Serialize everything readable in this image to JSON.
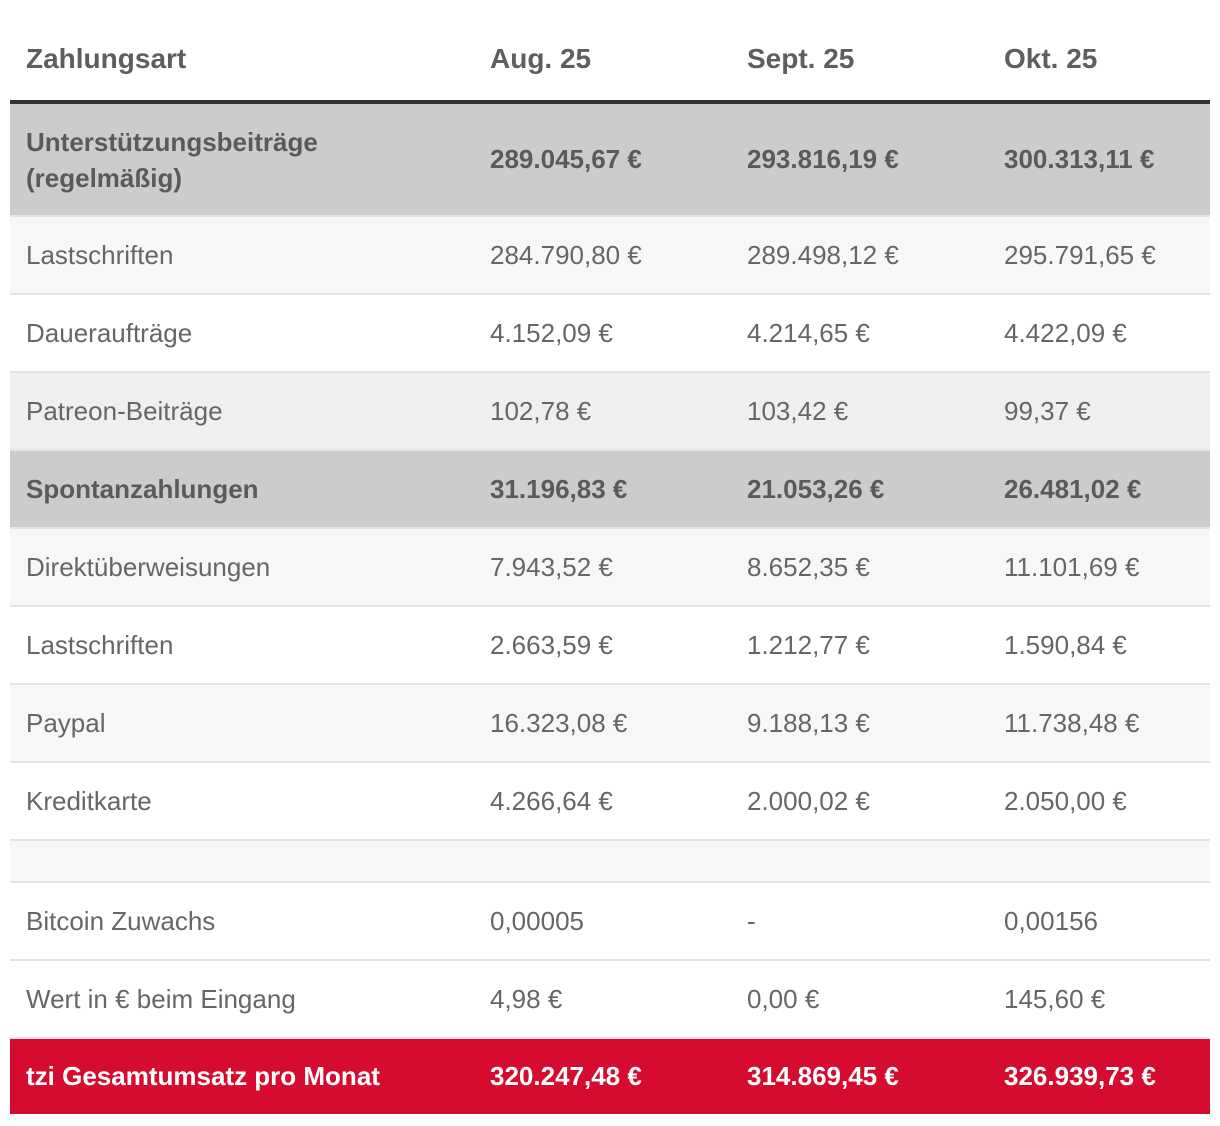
{
  "header": {
    "col1": "Zahlungsart",
    "col2": "Aug. 25",
    "col3": "Sept. 25",
    "col4": "Okt. 25"
  },
  "rows": [
    {
      "label": "Unterstützungsbeiträge (regelmäßig)",
      "v1": "289.045,67 €",
      "v2": "293.816,19 €",
      "v3": "300.313,11 €"
    },
    {
      "label": "Lastschriften",
      "v1": "284.790,80 €",
      "v2": "289.498,12 €",
      "v3": "295.791,65 €"
    },
    {
      "label": "Daueraufträge",
      "v1": "4.152,09 €",
      "v2": "4.214,65 €",
      "v3": "4.422,09 €"
    },
    {
      "label": "Patreon-Beiträge",
      "v1": "102,78 €",
      "v2": "103,42 €",
      "v3": "99,37 €"
    },
    {
      "label": "Spontanzahlungen",
      "v1": "31.196,83 €",
      "v2": "21.053,26 €",
      "v3": "26.481,02 €"
    },
    {
      "label": "Direktüberweisungen",
      "v1": "7.943,52 €",
      "v2": "8.652,35 €",
      "v3": "11.101,69 €"
    },
    {
      "label": "Lastschriften",
      "v1": "2.663,59 €",
      "v2": "1.212,77 €",
      "v3": "1.590,84 €"
    },
    {
      "label": "Paypal",
      "v1": "16.323,08 €",
      "v2": "9.188,13 €",
      "v3": "11.738,48 €"
    },
    {
      "label": "Kreditkarte",
      "v1": "4.266,64 €",
      "v2": "2.000,02 €",
      "v3": "2.050,00 €"
    },
    {
      "label": "Bitcoin Zuwachs",
      "v1": "0,00005",
      "v2": "-",
      "v3": "0,00156"
    },
    {
      "label": "Wert in € beim Eingang",
      "v1": "4,98 €",
      "v2": "0,00 €",
      "v3": "145,60 €"
    }
  ],
  "total": {
    "label": "tzi Gesamtumsatz pro Monat",
    "v1": "320.247,48 €",
    "v2": "314.869,45 €",
    "v3": "326.939,73 €"
  },
  "colors": {
    "accent": "#d50c2f",
    "group_bg": "#cccccc"
  }
}
